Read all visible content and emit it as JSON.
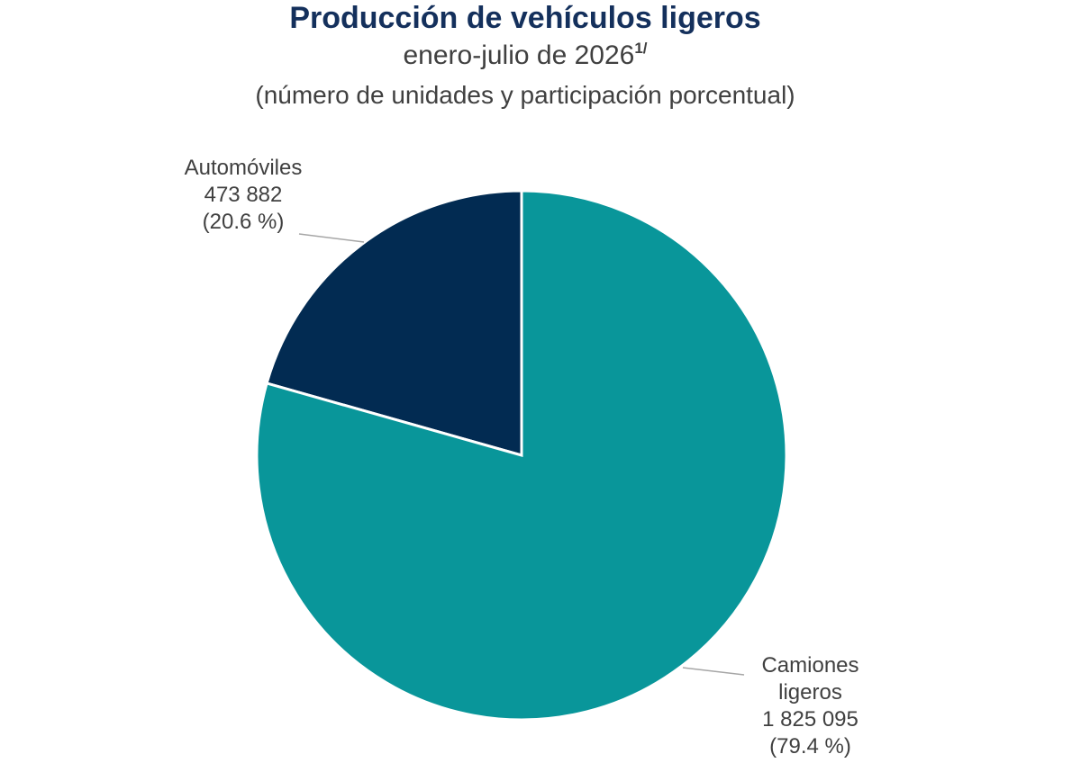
{
  "chart_data": {
    "type": "pie",
    "title": "Producción de vehículos ligeros",
    "subtitle": "enero-julio de 2026",
    "subtitle_note": "1/",
    "subtitle2": "(número de unidades y participación porcentual)",
    "slices": [
      {
        "label": "Automóviles",
        "value": 473882,
        "value_text": "473 882",
        "percent": 20.6,
        "percent_text": "(20.6 %)",
        "color": "#022b52"
      },
      {
        "label_line1": "Camiones",
        "label_line2": "ligeros",
        "value": 1825095,
        "value_text": "1 825 095",
        "percent": 79.4,
        "percent_text": "(79.4 %)",
        "color": "#09969a"
      }
    ],
    "start_angle": "12 o'clock",
    "legend": "none"
  }
}
